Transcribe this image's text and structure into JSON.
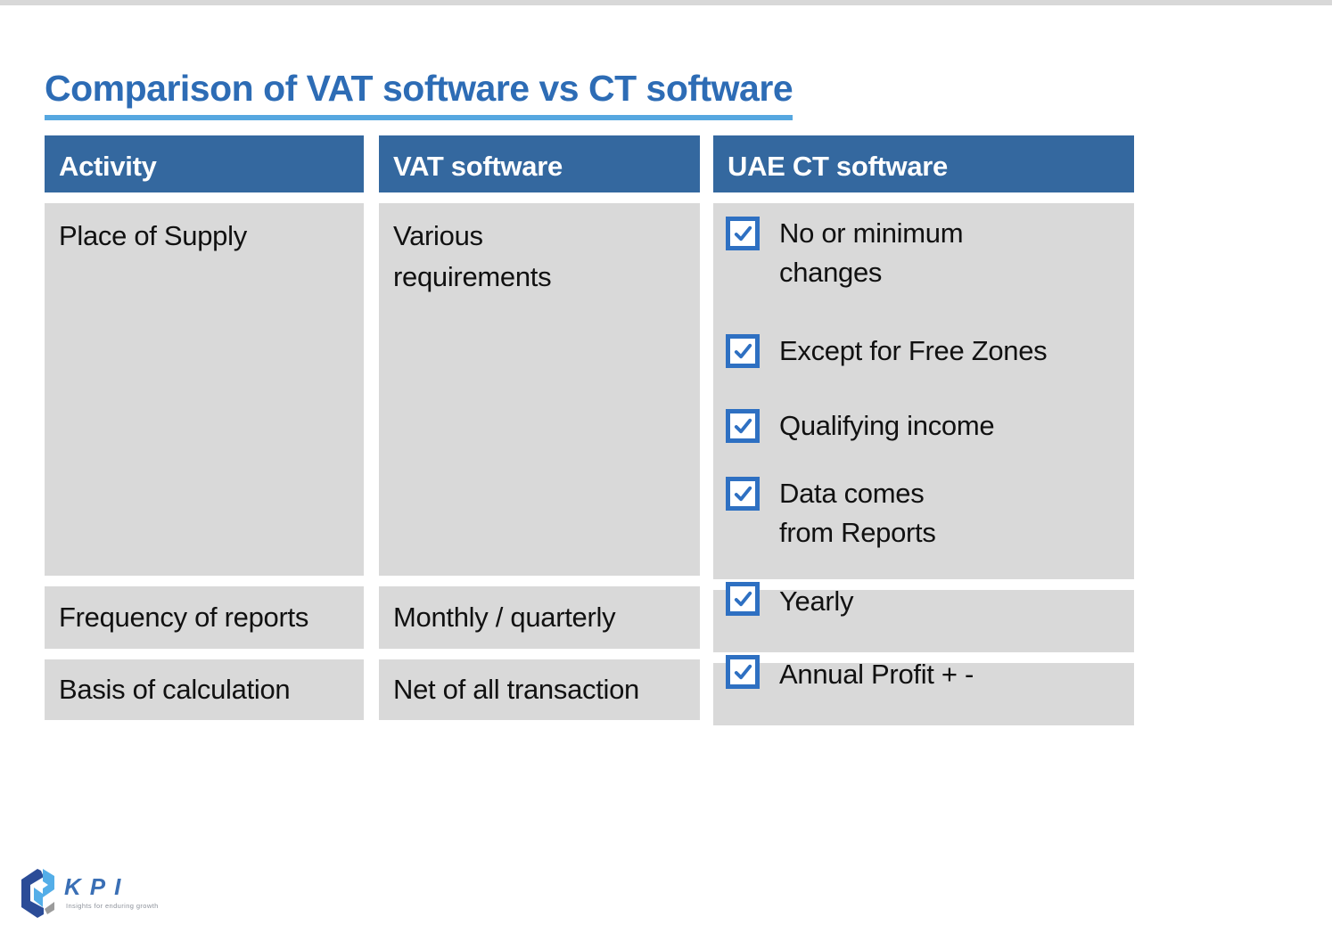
{
  "page": {
    "title": "Comparison of VAT software vs CT software"
  },
  "colors": {
    "title_blue": "#2d6cb5",
    "title_underline_blue": "#56a7e0",
    "header_blue": "#34689f",
    "cell_gray": "#d9d9d9",
    "checkbox_blue": "#2e70c2",
    "body_text": "#111111",
    "top_strip_gray": "#d8d8d8",
    "logo_dark_blue": "#2b4c97",
    "logo_light_blue": "#54aee8",
    "logo_gray": "#9b9b9b",
    "logo_text_blue": "#3a6fb5",
    "logo_tagline_gray": "#8d929b"
  },
  "table": {
    "headers": [
      "Activity",
      "VAT software",
      "UAE CT software"
    ],
    "rows": [
      {
        "activity": "Place of Supply",
        "vat": "Various\nrequirements",
        "ct_checklist": [
          "No or minimum\nchanges",
          "Except for Free Zones",
          "Qualifying income",
          "Data comes\nfrom Reports"
        ]
      },
      {
        "activity": "Frequency of reports",
        "vat": "Monthly / quarterly",
        "ct_checklist": [
          "Yearly"
        ]
      },
      {
        "activity": "Basis of calculation",
        "vat": "Net of all transaction",
        "ct_checklist": [
          "Annual Profit + -"
        ]
      }
    ]
  },
  "footer": {
    "logo_text": "KPI",
    "logo_tagline": "Insights for enduring growth"
  }
}
